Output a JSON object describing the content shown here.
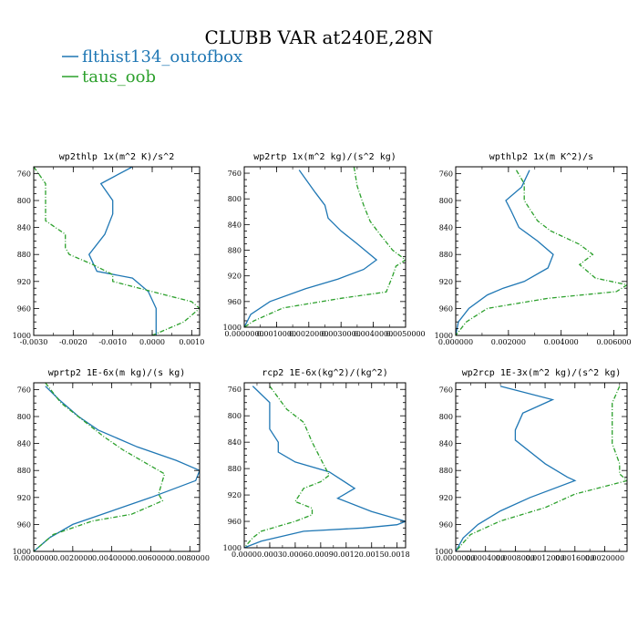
{
  "figure": {
    "title": "CLUBB VAR at240E,28N",
    "legend": [
      {
        "label": "flthist134_outofbox",
        "color": "#1f77b4",
        "dash": "solid"
      },
      {
        "label": "taus_oob",
        "color": "#2ca02c",
        "dash": "dashdot"
      }
    ]
  },
  "chart_data": [
    {
      "type": "line",
      "title": "wp2thlp   1x(m^2 K)/s^2",
      "xlim": [
        -0.003,
        0.0012
      ],
      "ylim": [
        1000,
        750
      ],
      "y_inverted": true,
      "xticks": [
        -0.003,
        -0.002,
        -0.001,
        0.0,
        0.001
      ],
      "xtick_labels": [
        "-0.0030",
        "-0.0020",
        "-0.0010",
        "0.0000",
        "0.0010"
      ],
      "yticks": [
        760,
        800,
        840,
        880,
        920,
        960,
        1000
      ],
      "ytick_labels": [
        "760",
        "800",
        "840",
        "880",
        "920",
        "960",
        "1000"
      ],
      "series": [
        {
          "name": "flthist134_outofbox",
          "points": [
            [
              -0.0005,
              750
            ],
            [
              -0.0013,
              775
            ],
            [
              -0.001,
              800
            ],
            [
              -0.001,
              820
            ],
            [
              -0.0012,
              850
            ],
            [
              -0.0016,
              880
            ],
            [
              -0.0014,
              905
            ],
            [
              -0.0005,
              915
            ],
            [
              -0.0001,
              935
            ],
            [
              0.0001,
              960
            ],
            [
              0.0001,
              980
            ],
            [
              0.0001,
              1000
            ]
          ]
        },
        {
          "name": "taus_oob",
          "points": [
            [
              -0.003,
              750
            ],
            [
              -0.0027,
              775
            ],
            [
              -0.0027,
              810
            ],
            [
              -0.0027,
              830
            ],
            [
              -0.0022,
              850
            ],
            [
              -0.0022,
              870
            ],
            [
              -0.0021,
              880
            ],
            [
              -0.0015,
              895
            ],
            [
              -0.001,
              910
            ],
            [
              -0.001,
              920
            ],
            [
              0.0,
              935
            ],
            [
              0.001,
              950
            ],
            [
              0.0012,
              960
            ],
            [
              0.0008,
              980
            ],
            [
              0.0,
              1000
            ]
          ]
        }
      ]
    },
    {
      "type": "line",
      "title": "wp2rtp   1x(m^2 kg)/(s^2 kg)",
      "xlim": [
        0,
        0.005
      ],
      "ylim": [
        1000,
        750
      ],
      "y_inverted": true,
      "xticks": [
        0,
        0.001,
        0.002,
        0.003,
        0.004,
        0.005
      ],
      "xtick_labels": [
        "0.0000000",
        "0.0010000",
        "0.0020000",
        "0.0030000",
        "0.0040000",
        "0.0050000"
      ],
      "yticks": [
        760,
        800,
        840,
        880,
        920,
        960,
        1000
      ],
      "ytick_labels": [
        "760",
        "800",
        "840",
        "880",
        "920",
        "960",
        "1000"
      ],
      "series": [
        {
          "name": "flthist134_outofbox",
          "points": [
            [
              0.0017,
              755
            ],
            [
              0.0022,
              790
            ],
            [
              0.0025,
              810
            ],
            [
              0.0026,
              830
            ],
            [
              0.003,
              850
            ],
            [
              0.0035,
              870
            ],
            [
              0.0041,
              895
            ],
            [
              0.0037,
              910
            ],
            [
              0.0029,
              925
            ],
            [
              0.0019,
              940
            ],
            [
              0.0008,
              960
            ],
            [
              0.0002,
              980
            ],
            [
              0.0,
              1000
            ]
          ]
        },
        {
          "name": "taus_oob",
          "points": [
            [
              0.0034,
              750
            ],
            [
              0.0035,
              780
            ],
            [
              0.0037,
              810
            ],
            [
              0.0039,
              835
            ],
            [
              0.0042,
              855
            ],
            [
              0.0046,
              880
            ],
            [
              0.005,
              895
            ],
            [
              0.0047,
              905
            ],
            [
              0.0046,
              920
            ],
            [
              0.0044,
              945
            ],
            [
              0.003,
              955
            ],
            [
              0.0012,
              970
            ],
            [
              0.0003,
              990
            ],
            [
              0.0,
              1000
            ]
          ]
        }
      ]
    },
    {
      "type": "line",
      "title": "wpthlp2   1x(m K^2)/s",
      "xlim": [
        0,
        0.0065
      ],
      "ylim": [
        1000,
        750
      ],
      "y_inverted": true,
      "xticks": [
        0,
        0.002,
        0.004,
        0.006
      ],
      "xtick_labels": [
        "0.000000",
        "0.002000",
        "0.004000",
        "0.006000"
      ],
      "yticks": [
        760,
        800,
        840,
        880,
        920,
        960,
        1000
      ],
      "ytick_labels": [
        "760",
        "800",
        "840",
        "880",
        "920",
        "960",
        "1000"
      ],
      "series": [
        {
          "name": "flthist134_outofbox",
          "points": [
            [
              0.0028,
              755
            ],
            [
              0.0025,
              780
            ],
            [
              0.0019,
              800
            ],
            [
              0.0021,
              815
            ],
            [
              0.0024,
              840
            ],
            [
              0.0031,
              860
            ],
            [
              0.0037,
              880
            ],
            [
              0.0035,
              900
            ],
            [
              0.0026,
              920
            ],
            [
              0.0018,
              930
            ],
            [
              0.0012,
              940
            ],
            [
              0.0005,
              960
            ],
            [
              0.0001,
              980
            ],
            [
              0.0,
              1000
            ]
          ]
        },
        {
          "name": "taus_oob",
          "points": [
            [
              0.0023,
              755
            ],
            [
              0.0026,
              775
            ],
            [
              0.0026,
              800
            ],
            [
              0.0031,
              830
            ],
            [
              0.0036,
              845
            ],
            [
              0.0047,
              865
            ],
            [
              0.0052,
              880
            ],
            [
              0.0047,
              895
            ],
            [
              0.0053,
              915
            ],
            [
              0.0065,
              925
            ],
            [
              0.0061,
              935
            ],
            [
              0.0035,
              945
            ],
            [
              0.0012,
              960
            ],
            [
              0.0004,
              980
            ],
            [
              0.0,
              1000
            ]
          ]
        }
      ]
    },
    {
      "type": "line",
      "title": "wprtp2   1E-6x(m kg)/(s kg)",
      "xlim": [
        0,
        0.0085
      ],
      "ylim": [
        1000,
        750
      ],
      "y_inverted": true,
      "xticks": [
        0,
        0.002,
        0.004,
        0.006,
        0.008
      ],
      "xtick_labels": [
        "0.0000000",
        "0.0020000",
        "0.0040000",
        "0.0060000",
        "0.0080000"
      ],
      "yticks": [
        760,
        800,
        840,
        880,
        920,
        960,
        1000
      ],
      "ytick_labels": [
        "760",
        "800",
        "840",
        "880",
        "920",
        "960",
        "1000"
      ],
      "series": [
        {
          "name": "flthist134_outofbox",
          "points": [
            [
              0.0006,
              755
            ],
            [
              0.0013,
              775
            ],
            [
              0.0023,
              800
            ],
            [
              0.0033,
              820
            ],
            [
              0.0053,
              845
            ],
            [
              0.0073,
              865
            ],
            [
              0.0085,
              880
            ],
            [
              0.0083,
              895
            ],
            [
              0.006,
              920
            ],
            [
              0.004,
              940
            ],
            [
              0.002,
              960
            ],
            [
              0.0008,
              980
            ],
            [
              0.0,
              1000
            ]
          ]
        },
        {
          "name": "taus_oob",
          "points": [
            [
              0.0006,
              750
            ],
            [
              0.0014,
              780
            ],
            [
              0.0025,
              805
            ],
            [
              0.0036,
              830
            ],
            [
              0.0046,
              850
            ],
            [
              0.0058,
              870
            ],
            [
              0.0067,
              885
            ],
            [
              0.0064,
              915
            ],
            [
              0.0066,
              925
            ],
            [
              0.005,
              945
            ],
            [
              0.003,
              955
            ],
            [
              0.001,
              975
            ],
            [
              0.0,
              1000
            ]
          ]
        }
      ]
    },
    {
      "type": "line",
      "title": "rcp2   1E-6x(kg^2)/(kg^2)",
      "xlim": [
        0,
        0.0019
      ],
      "ylim": [
        1000,
        750
      ],
      "y_inverted": true,
      "xticks": [
        0,
        0.0003,
        0.0006,
        0.0009,
        0.0012,
        0.0015,
        0.0018
      ],
      "xtick_labels": [
        "0.0000",
        "0.0003",
        "0.0006",
        "0.0009",
        "0.0012",
        "0.0015",
        "0.0018"
      ],
      "yticks": [
        760,
        800,
        840,
        880,
        920,
        960,
        1000
      ],
      "ytick_labels": [
        "760",
        "800",
        "840",
        "880",
        "920",
        "960",
        "1000"
      ],
      "series": [
        {
          "name": "flthist134_outofbox",
          "points": [
            [
              0.0001,
              755
            ],
            [
              0.0003,
              780
            ],
            [
              0.0003,
              820
            ],
            [
              0.0004,
              840
            ],
            [
              0.0004,
              855
            ],
            [
              0.0006,
              870
            ],
            [
              0.001,
              885
            ],
            [
              0.0013,
              910
            ],
            [
              0.0011,
              925
            ],
            [
              0.0015,
              945
            ],
            [
              0.0019,
              960
            ],
            [
              0.0018,
              965
            ],
            [
              0.0014,
              970
            ],
            [
              0.0007,
              975
            ],
            [
              0.0002,
              990
            ],
            [
              0.0,
              1000
            ]
          ]
        },
        {
          "name": "taus_oob",
          "points": [
            [
              0.0003,
              755
            ],
            [
              0.0005,
              790
            ],
            [
              0.0007,
              810
            ],
            [
              0.0008,
              840
            ],
            [
              0.0009,
              865
            ],
            [
              0.001,
              890
            ],
            [
              0.0009,
              900
            ],
            [
              0.0007,
              910
            ],
            [
              0.0006,
              930
            ],
            [
              0.0008,
              940
            ],
            [
              0.0008,
              950
            ],
            [
              0.0006,
              960
            ],
            [
              0.0002,
              975
            ],
            [
              0.0001,
              985
            ],
            [
              0.0,
              1000
            ]
          ]
        }
      ]
    },
    {
      "type": "line",
      "title": "wp2rcp   1E-3x(m^2 kg)/(s^2 kg)",
      "xlim": [
        0,
        0.0023
      ],
      "ylim": [
        1000,
        750
      ],
      "y_inverted": true,
      "xticks": [
        0,
        0.0004,
        0.0008,
        0.0012,
        0.0016,
        0.002
      ],
      "xtick_labels": [
        "0.0000000",
        "0.0004000",
        "0.0008000",
        "0.0012000",
        "0.0016000",
        "0.0020000"
      ],
      "yticks": [
        760,
        800,
        840,
        880,
        920,
        960,
        1000
      ],
      "ytick_labels": [
        "760",
        "800",
        "840",
        "880",
        "920",
        "960",
        "1000"
      ],
      "series": [
        {
          "name": "flthist134_outofbox",
          "points": [
            [
              0.0006,
              755
            ],
            [
              0.0013,
              775
            ],
            [
              0.0009,
              795
            ],
            [
              0.0008,
              820
            ],
            [
              0.0008,
              835
            ],
            [
              0.0012,
              870
            ],
            [
              0.0015,
              890
            ],
            [
              0.0016,
              895
            ],
            [
              0.001,
              920
            ],
            [
              0.0006,
              940
            ],
            [
              0.0003,
              960
            ],
            [
              0.0001,
              980
            ],
            [
              0.0,
              1000
            ]
          ]
        },
        {
          "name": "taus_oob",
          "points": [
            [
              0.0022,
              755
            ],
            [
              0.0021,
              780
            ],
            [
              0.0021,
              800
            ],
            [
              0.0021,
              840
            ],
            [
              0.0022,
              870
            ],
            [
              0.0022,
              885
            ],
            [
              0.0023,
              895
            ],
            [
              0.0016,
              915
            ],
            [
              0.0012,
              935
            ],
            [
              0.0006,
              955
            ],
            [
              0.0002,
              975
            ],
            [
              0.0,
              1000
            ]
          ]
        }
      ]
    }
  ]
}
